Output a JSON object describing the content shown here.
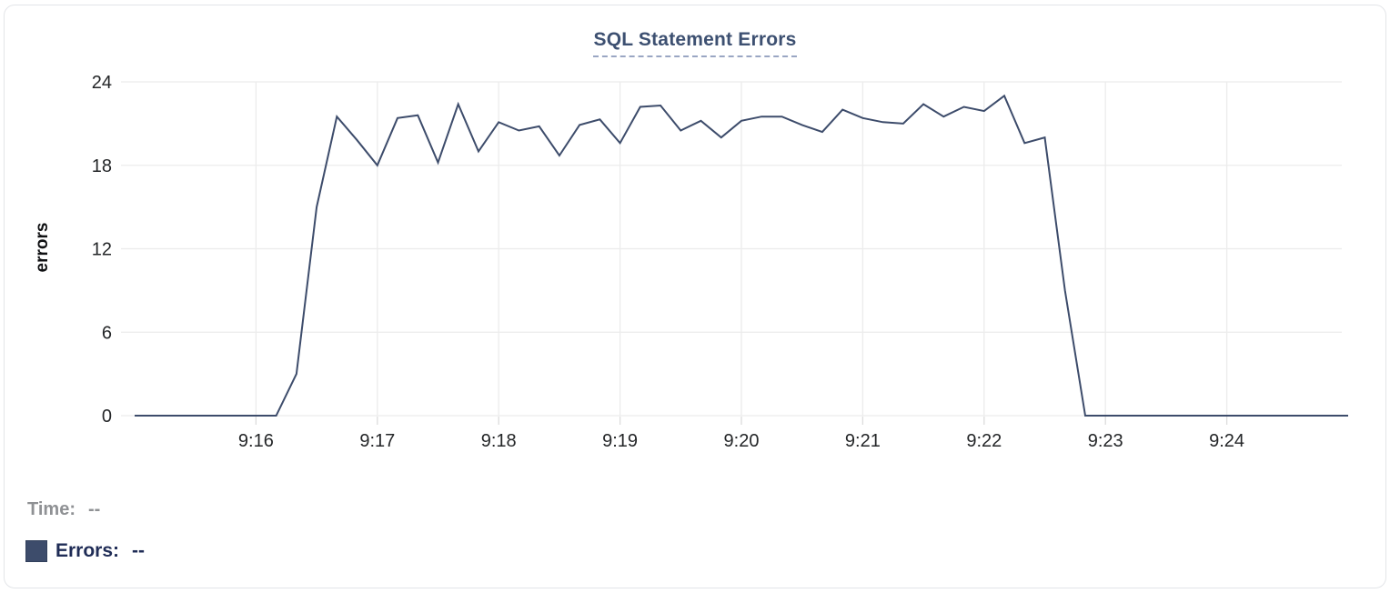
{
  "chart": {
    "title": "SQL Statement Errors"
  },
  "chart_data": {
    "type": "line",
    "title": "SQL Statement Errors",
    "xlabel": "",
    "ylabel": "errors",
    "x_tick_labels": [
      "9:16",
      "9:17",
      "9:18",
      "9:19",
      "9:20",
      "9:21",
      "9:22",
      "9:23",
      "9:24"
    ],
    "y_tick_labels": [
      "0",
      "6",
      "12",
      "18",
      "24"
    ],
    "y_tick_values": [
      0,
      6,
      12,
      18,
      24
    ],
    "ylim": [
      0,
      24
    ],
    "x_range_time": [
      "9:15:00",
      "9:25:00"
    ],
    "sample_interval_seconds": 10,
    "grid": true,
    "legend_position": "bottom-left",
    "series": [
      {
        "name": "Errors",
        "color": "#3d4c6b",
        "points": [
          [
            "9:15:00",
            0
          ],
          [
            "9:15:10",
            0
          ],
          [
            "9:15:20",
            0
          ],
          [
            "9:15:30",
            0
          ],
          [
            "9:15:40",
            0
          ],
          [
            "9:15:50",
            0
          ],
          [
            "9:16:00",
            0
          ],
          [
            "9:16:10",
            0
          ],
          [
            "9:16:20",
            3
          ],
          [
            "9:16:30",
            15
          ],
          [
            "9:16:40",
            21.5
          ],
          [
            "9:16:50",
            19.8
          ],
          [
            "9:17:00",
            18
          ],
          [
            "9:17:10",
            21.4
          ],
          [
            "9:17:20",
            21.6
          ],
          [
            "9:17:30",
            18.2
          ],
          [
            "9:17:40",
            22.4
          ],
          [
            "9:17:50",
            19
          ],
          [
            "9:18:00",
            21.1
          ],
          [
            "9:18:10",
            20.5
          ],
          [
            "9:18:20",
            20.8
          ],
          [
            "9:18:30",
            18.7
          ],
          [
            "9:18:40",
            20.9
          ],
          [
            "9:18:50",
            21.3
          ],
          [
            "9:19:00",
            19.6
          ],
          [
            "9:19:10",
            22.2
          ],
          [
            "9:19:20",
            22.3
          ],
          [
            "9:19:30",
            20.5
          ],
          [
            "9:19:40",
            21.2
          ],
          [
            "9:19:50",
            20
          ],
          [
            "9:20:00",
            21.2
          ],
          [
            "9:20:10",
            21.5
          ],
          [
            "9:20:20",
            21.5
          ],
          [
            "9:20:30",
            20.9
          ],
          [
            "9:20:40",
            20.4
          ],
          [
            "9:20:50",
            22
          ],
          [
            "9:21:00",
            21.4
          ],
          [
            "9:21:10",
            21.1
          ],
          [
            "9:21:20",
            21
          ],
          [
            "9:21:30",
            22.4
          ],
          [
            "9:21:40",
            21.5
          ],
          [
            "9:21:50",
            22.2
          ],
          [
            "9:22:00",
            21.9
          ],
          [
            "9:22:10",
            23
          ],
          [
            "9:22:20",
            19.6
          ],
          [
            "9:22:30",
            20
          ],
          [
            "9:22:40",
            9
          ],
          [
            "9:22:50",
            0
          ],
          [
            "9:23:00",
            0
          ],
          [
            "9:23:10",
            0
          ],
          [
            "9:23:20",
            0
          ],
          [
            "9:23:30",
            0
          ],
          [
            "9:23:40",
            0
          ],
          [
            "9:23:50",
            0
          ],
          [
            "9:24:00",
            0
          ],
          [
            "9:24:10",
            0
          ],
          [
            "9:24:20",
            0
          ],
          [
            "9:24:30",
            0
          ],
          [
            "9:24:40",
            0
          ],
          [
            "9:24:50",
            0
          ],
          [
            "9:25:00",
            0
          ]
        ]
      }
    ]
  },
  "readout": {
    "time_label": "Time:",
    "time_value": "--",
    "errors_label": "Errors:",
    "errors_value": "--"
  },
  "colors": {
    "series_line": "#3d4c6b",
    "legend_swatch": "#3d4c6b",
    "title_text": "#3d5071",
    "title_underline": "#9aa6c3",
    "errors_readout_text": "#1f2c56",
    "time_readout_text": "#8f9194",
    "axis_tick_text": "#242628",
    "axis_title_text": "#101113",
    "gridline": "#ececec",
    "card_border": "#e3e5e8"
  }
}
